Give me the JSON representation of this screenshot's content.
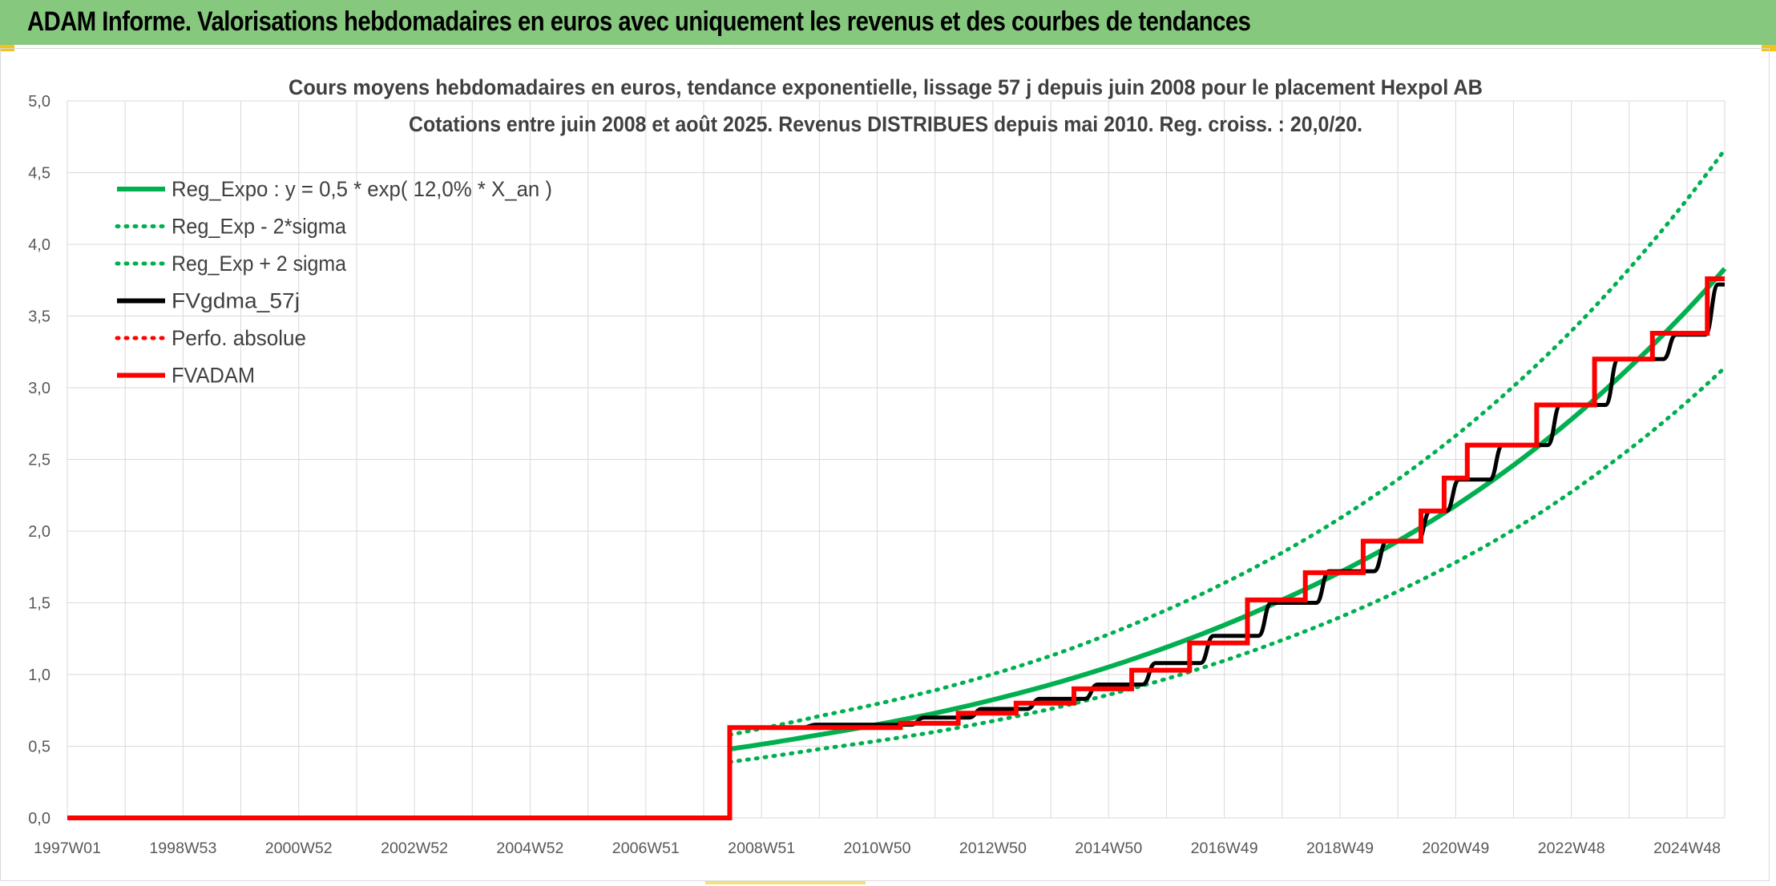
{
  "banner": {
    "title": "ADAM Informe. Valorisations hebdomadaires en euros avec uniquement les revenus et des courbes de tendances",
    "color": "#86c97e"
  },
  "chart_data": {
    "type": "line",
    "title": "Cours moyens hebdomadaires en euros, tendance exponentielle, lissage 57 j depuis juin 2008 pour le placement Hexpol AB",
    "subtitle": "Cotations entre juin 2008 et août 2025. Revenus DISTRIBUES depuis mai 2010. Reg. croiss. : 20,0/20.",
    "xlabel": "",
    "ylabel": "",
    "ylim": [
      0,
      5
    ],
    "xlim": [
      1997.0,
      2025.65
    ],
    "y_ticks": [
      "0,0",
      "0,5",
      "1,0",
      "1,5",
      "2,0",
      "2,5",
      "3,0",
      "3,5",
      "4,0",
      "4,5",
      "5,0"
    ],
    "x_ticks": [
      {
        "label": "1997W01",
        "x": 1997.0
      },
      {
        "label": "1998W53",
        "x": 1999.0
      },
      {
        "label": "2000W52",
        "x": 2001.0
      },
      {
        "label": "2002W52",
        "x": 2003.0
      },
      {
        "label": "2004W52",
        "x": 2005.0
      },
      {
        "label": "2006W51",
        "x": 2007.0
      },
      {
        "label": "2008W51",
        "x": 2009.0
      },
      {
        "label": "2010W50",
        "x": 2011.0
      },
      {
        "label": "2012W50",
        "x": 2013.0
      },
      {
        "label": "2014W50",
        "x": 2015.0
      },
      {
        "label": "2016W49",
        "x": 2017.0
      },
      {
        "label": "2018W49",
        "x": 2019.0
      },
      {
        "label": "2020W49",
        "x": 2021.0
      },
      {
        "label": "2022W48",
        "x": 2023.0
      },
      {
        "label": "2024W48",
        "x": 2025.0
      }
    ],
    "grid": true,
    "legend_position": "top-left",
    "series": [
      {
        "name": "Reg_Expo : y = 0,5 * exp( 12,0% *  X_an )",
        "style": "solid",
        "color": "#00b050",
        "x": [
          2008.45,
          2010,
          2012,
          2014,
          2016,
          2018,
          2020,
          2022,
          2024,
          2025.65
        ],
        "y": [
          0.48,
          0.58,
          0.73,
          0.93,
          1.19,
          1.52,
          1.93,
          2.46,
          3.14,
          3.83
        ]
      },
      {
        "name": "Reg_Exp - 2*sigma",
        "style": "dotted",
        "color": "#00b050",
        "x": [
          2008.45,
          2010,
          2012,
          2014,
          2016,
          2018,
          2020,
          2022,
          2024,
          2025.65
        ],
        "y": [
          0.39,
          0.48,
          0.6,
          0.76,
          0.97,
          1.24,
          1.58,
          2.01,
          2.57,
          3.14
        ]
      },
      {
        "name": "Reg_Exp + 2 sigma",
        "style": "dotted",
        "color": "#00b050",
        "x": [
          2008.45,
          2010,
          2012,
          2014,
          2016,
          2018,
          2020,
          2022,
          2024,
          2025.65
        ],
        "y": [
          0.58,
          0.71,
          0.89,
          1.13,
          1.45,
          1.85,
          2.36,
          3.01,
          3.83,
          4.66
        ]
      },
      {
        "name": "FVgdma_57j",
        "style": "solid",
        "color": "#000000",
        "x": [
          1997.0,
          2008.45,
          2008.45,
          2011.2,
          2012.2,
          2013.2,
          2014.2,
          2015.2,
          2016.2,
          2017.2,
          2018.2,
          2019.2,
          2020.2,
          2020.7,
          2021.2,
          2022.2,
          2023.2,
          2024.2,
          2025.2,
          2025.65
        ],
        "y": [
          0.0,
          0.0,
          0.63,
          0.65,
          0.7,
          0.76,
          0.83,
          0.93,
          1.08,
          1.27,
          1.5,
          1.72,
          1.93,
          2.14,
          2.36,
          2.6,
          2.88,
          3.2,
          3.37,
          3.72
        ]
      },
      {
        "name": "Perfo. absolue",
        "style": "dotted",
        "color": "#ff0000",
        "x": [],
        "y": []
      },
      {
        "name": "FVADAM",
        "style": "solid-steps",
        "color": "#ff0000",
        "steps": [
          {
            "x": 1997.0,
            "y": 0.0
          },
          {
            "x": 2008.45,
            "y": 0.63
          },
          {
            "x": 2011.4,
            "y": 0.66
          },
          {
            "x": 2012.4,
            "y": 0.73
          },
          {
            "x": 2013.4,
            "y": 0.8
          },
          {
            "x": 2014.4,
            "y": 0.9
          },
          {
            "x": 2015.4,
            "y": 1.03
          },
          {
            "x": 2016.4,
            "y": 1.22
          },
          {
            "x": 2017.4,
            "y": 1.52
          },
          {
            "x": 2018.4,
            "y": 1.71
          },
          {
            "x": 2019.4,
            "y": 1.93
          },
          {
            "x": 2020.4,
            "y": 2.14
          },
          {
            "x": 2020.8,
            "y": 2.37
          },
          {
            "x": 2021.2,
            "y": 2.6
          },
          {
            "x": 2022.4,
            "y": 2.88
          },
          {
            "x": 2023.4,
            "y": 3.2
          },
          {
            "x": 2024.4,
            "y": 3.38
          },
          {
            "x": 2025.35,
            "y": 3.76
          }
        ],
        "end_x": 2025.65
      }
    ]
  }
}
